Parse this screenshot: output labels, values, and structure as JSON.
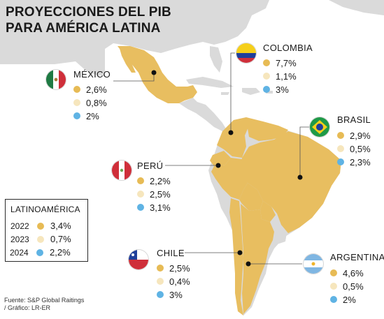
{
  "title": {
    "line1": "PROYECCIONES DEL PIB",
    "line2": "PARA AMÉRICA LATINA"
  },
  "colors": {
    "year_2022": "#e7bb55",
    "year_2023": "#f6e6bd",
    "year_2024": "#5fb3e4",
    "land": "#e8be60",
    "other_land": "#dadada",
    "sea": "#ffffff"
  },
  "countries": [
    {
      "id": "mexico",
      "name": "MÉXICO",
      "values": [
        "2,6%",
        "0,8%",
        "2%"
      ],
      "flag_icon": "mexico-flag-icon"
    },
    {
      "id": "colombia",
      "name": "COLOMBIA",
      "values": [
        "7,7%",
        "1,1%",
        "3%"
      ],
      "flag_icon": "colombia-flag-icon"
    },
    {
      "id": "brasil",
      "name": "BRASIL",
      "values": [
        "2,9%",
        "0,5%",
        "2,3%"
      ],
      "flag_icon": "brazil-flag-icon"
    },
    {
      "id": "peru",
      "name": "PERÚ",
      "values": [
        "2,2%",
        "2,5%",
        "3,1%"
      ],
      "flag_icon": "peru-flag-icon"
    },
    {
      "id": "chile",
      "name": "CHILE",
      "values": [
        "2,5%",
        "0,4%",
        "3%"
      ],
      "flag_icon": "chile-flag-icon"
    },
    {
      "id": "argentina",
      "name": "ARGENTINA",
      "values": [
        "4,6%",
        "0,5%",
        "2%"
      ],
      "flag_icon": "argentina-flag-icon"
    }
  ],
  "legend": {
    "title": "LATINOAMÉRICA",
    "rows": [
      {
        "year": "2022",
        "value": "3,4%"
      },
      {
        "year": "2023",
        "value": "0,7%"
      },
      {
        "year": "2024",
        "value": "2,2%"
      }
    ]
  },
  "source": {
    "line1": "Fuente: S&P Global Raitings",
    "line2": " / Gráfico: LR-ER"
  }
}
